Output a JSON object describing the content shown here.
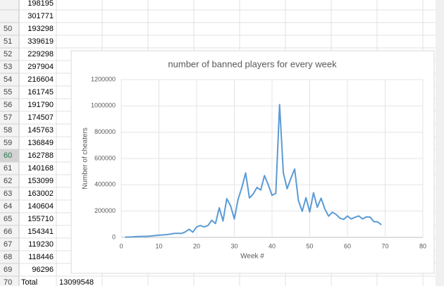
{
  "sheet": {
    "rows": [
      {
        "value": 198195
      },
      {
        "value": 301771
      },
      {
        "number": 50,
        "value": 193298
      },
      {
        "number": 51,
        "value": 339619
      },
      {
        "number": 52,
        "value": 229298
      },
      {
        "number": 53,
        "value": 297904
      },
      {
        "number": 54,
        "value": 216604
      },
      {
        "number": 55,
        "value": 161745
      },
      {
        "number": 56,
        "value": 191790
      },
      {
        "number": 57,
        "value": 174507
      },
      {
        "number": 58,
        "value": 145763
      },
      {
        "number": 59,
        "value": 136849
      },
      {
        "number": 60,
        "value": 162788
      },
      {
        "number": 61,
        "value": 140168
      },
      {
        "number": 62,
        "value": 153099
      },
      {
        "number": 63,
        "value": 163002
      },
      {
        "number": 64,
        "value": 140604
      },
      {
        "number": 65,
        "value": 155710
      },
      {
        "number": 66,
        "value": 154341
      },
      {
        "number": 67,
        "value": 119230
      },
      {
        "number": 68,
        "value": 118446
      },
      {
        "number": 69,
        "value": 96296
      },
      {
        "number": 70,
        "label": "Total",
        "value": 13099548
      }
    ],
    "selected_row": 60
  },
  "chart_data": {
    "type": "line",
    "title": "number of banned players for every week",
    "x_label": "Week #",
    "y_label": "Number of cheaters",
    "x": [
      1,
      2,
      3,
      4,
      5,
      6,
      7,
      8,
      9,
      10,
      11,
      12,
      13,
      14,
      15,
      16,
      17,
      18,
      19,
      20,
      21,
      22,
      23,
      24,
      25,
      26,
      27,
      28,
      29,
      30,
      31,
      32,
      33,
      34,
      35,
      36,
      37,
      38,
      39,
      40,
      41,
      42,
      43,
      44,
      45,
      46,
      47,
      48,
      49,
      50,
      51,
      52,
      53,
      54,
      55,
      56,
      57,
      58,
      59,
      60,
      61,
      62,
      63,
      64,
      65,
      66,
      67,
      68,
      69
    ],
    "series": [
      {
        "color": "#5b9bd5",
        "values": [
          2000,
          3000,
          4000,
          6000,
          7000,
          8000,
          9000,
          11000,
          14000,
          17000,
          19000,
          21000,
          25000,
          30000,
          31000,
          30000,
          42000,
          62000,
          40000,
          80000,
          90000,
          80000,
          90000,
          130000,
          105000,
          225000,
          125000,
          295000,
          240000,
          140000,
          290000,
          380000,
          490000,
          300000,
          330000,
          380000,
          360000,
          470000,
          400000,
          320000,
          335000,
          1010000,
          490000,
          370000,
          450000,
          520000,
          280000,
          198195,
          301771,
          193298,
          339619,
          229298,
          297904,
          216604,
          161745,
          191790,
          174507,
          145763,
          136849,
          162788,
          140168,
          153099,
          163002,
          140604,
          155710,
          154341,
          119230,
          118446,
          96296
        ]
      }
    ],
    "xlim": [
      0,
      80
    ],
    "xticks": [
      0,
      10,
      20,
      30,
      40,
      50,
      60,
      70,
      80
    ],
    "ylim": [
      0,
      1200000
    ],
    "yticks": [
      0,
      200000,
      400000,
      600000,
      800000,
      1000000,
      1200000
    ],
    "grid": true
  }
}
